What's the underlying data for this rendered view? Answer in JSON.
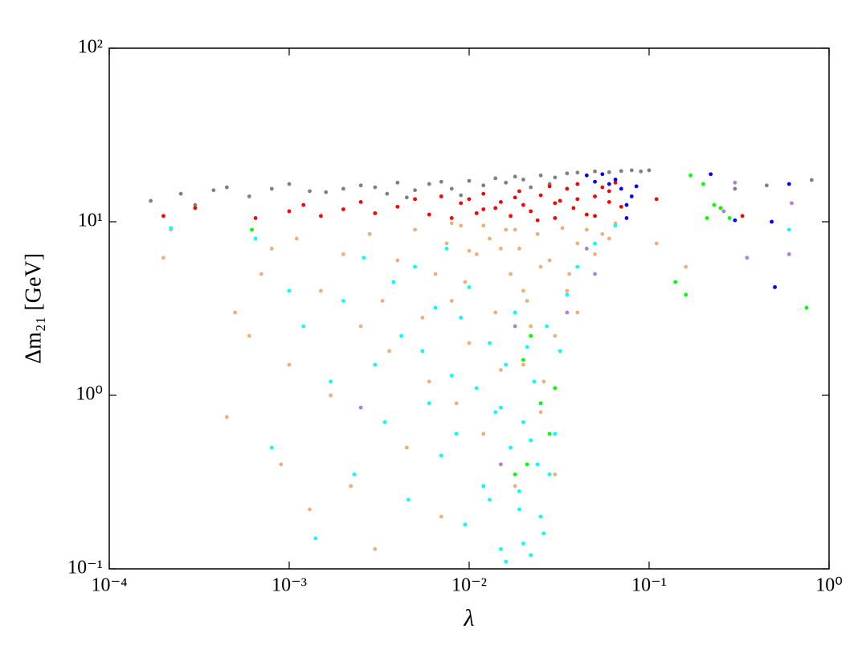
{
  "chart_data": {
    "type": "scatter",
    "xlabel": "λ",
    "ylabel": "Δm₂₁ [GeV]",
    "xscale": "log",
    "yscale": "log",
    "xlim": [
      0.0001,
      1
    ],
    "ylim": [
      0.1,
      100
    ],
    "xticks": [
      {
        "value": 0.0001,
        "label": "10⁻⁴"
      },
      {
        "value": 0.001,
        "label": "10⁻³"
      },
      {
        "value": 0.01,
        "label": "10⁻²"
      },
      {
        "value": 0.1,
        "label": "10⁻¹"
      },
      {
        "value": 1,
        "label": "10⁰"
      }
    ],
    "yticks": [
      {
        "value": 0.1,
        "label": "10⁻¹"
      },
      {
        "value": 1,
        "label": "10⁰"
      },
      {
        "value": 10,
        "label": "10¹"
      },
      {
        "value": 100,
        "label": "10²"
      }
    ],
    "series": [
      {
        "color": "#808080",
        "x": [
          0.00017,
          0.00025,
          0.0003,
          0.00038,
          0.00045,
          0.0006,
          0.0008,
          0.001,
          0.0013,
          0.0016,
          0.002,
          0.0025,
          0.003,
          0.0035,
          0.004,
          0.005,
          0.006,
          0.007,
          0.008,
          0.01,
          0.012,
          0.014,
          0.016,
          0.018,
          0.02,
          0.025,
          0.03,
          0.035,
          0.04,
          0.05,
          0.06,
          0.07,
          0.08,
          0.09,
          0.1,
          0.3,
          0.45,
          0.8,
          0.0045,
          0.009,
          0.022,
          0.028
        ],
        "y": [
          13.2,
          14.5,
          12.5,
          15.2,
          15.8,
          14,
          15.5,
          16.5,
          15,
          14.8,
          15.5,
          16.2,
          15.8,
          14.5,
          16.8,
          15.2,
          16.5,
          17,
          15.5,
          17.2,
          16.2,
          17.8,
          16.8,
          18.2,
          17.5,
          18.5,
          18,
          19,
          19.2,
          19.5,
          19.3,
          19.6,
          19.8,
          19.5,
          19.8,
          15.5,
          16.2,
          17.4,
          13.8,
          14.2,
          15.8,
          16.5
        ]
      },
      {
        "color": "#ff0000",
        "x": [
          0.0002,
          0.0003,
          0.00065,
          0.001,
          0.0012,
          0.0015,
          0.002,
          0.0025,
          0.003,
          0.004,
          0.005,
          0.006,
          0.007,
          0.008,
          0.009,
          0.01,
          0.011,
          0.012,
          0.014,
          0.015,
          0.017,
          0.019,
          0.02,
          0.022,
          0.025,
          0.028,
          0.03,
          0.032,
          0.035,
          0.038,
          0.04,
          0.045,
          0.05,
          0.055,
          0.06,
          0.065,
          0.07,
          0.012,
          0.018,
          0.024,
          0.03,
          0.04,
          0.05,
          0.06,
          0.11,
          0.25,
          0.33
        ],
        "y": [
          10.8,
          12,
          10.5,
          11.5,
          12.5,
          10.8,
          11.8,
          13,
          11.2,
          12.2,
          13.5,
          11,
          14,
          10.5,
          12.8,
          13.5,
          11.2,
          14.5,
          12,
          13,
          10.8,
          15,
          12.5,
          11.5,
          14.2,
          16,
          10.5,
          13.2,
          15.5,
          12,
          16.5,
          11,
          14,
          15.8,
          13,
          16.8,
          12.2,
          11.8,
          13.8,
          10.2,
          12.8,
          13.5,
          10.8,
          15,
          13.5,
          12,
          10.8
        ]
      },
      {
        "color": "#0000ff",
        "x": [
          0.045,
          0.05,
          0.055,
          0.06,
          0.065,
          0.07,
          0.075,
          0.08,
          0.085,
          0.22,
          0.3,
          0.48,
          0.6,
          0.5,
          0.075
        ],
        "y": [
          18.5,
          17,
          18.8,
          16.5,
          17.5,
          15.5,
          12.5,
          14,
          16,
          18.8,
          10.2,
          10,
          16.5,
          4.2,
          10.5
        ]
      },
      {
        "color": "#eeb07a",
        "x": [
          0.0002,
          0.00022,
          0.00045,
          0.0005,
          0.0006,
          0.0007,
          0.0008,
          0.0009,
          0.001,
          0.0011,
          0.0013,
          0.0015,
          0.0017,
          0.002,
          0.0022,
          0.0025,
          0.0028,
          0.003,
          0.0033,
          0.0036,
          0.004,
          0.0045,
          0.005,
          0.0055,
          0.006,
          0.0065,
          0.007,
          0.0075,
          0.008,
          0.0085,
          0.009,
          0.0095,
          0.01,
          0.011,
          0.012,
          0.013,
          0.014,
          0.015,
          0.016,
          0.017,
          0.018,
          0.019,
          0.02,
          0.022,
          0.024,
          0.026,
          0.028,
          0.03,
          0.033,
          0.036,
          0.04,
          0.045,
          0.05,
          0.055,
          0.06,
          0.065,
          0.012,
          0.015,
          0.018,
          0.021,
          0.025,
          0.03,
          0.035,
          0.04,
          0.02,
          0.025,
          0.01,
          0.008,
          0.11,
          0.16
        ],
        "y": [
          6.2,
          9,
          0.75,
          3,
          2.2,
          5,
          7,
          0.4,
          1.5,
          8,
          0.22,
          4,
          1,
          6.5,
          0.3,
          2.5,
          8.5,
          0.13,
          3.5,
          1.8,
          6,
          0.5,
          9,
          2.8,
          1.2,
          5,
          0.2,
          7.5,
          3.5,
          0.9,
          9.5,
          4.5,
          2,
          6.5,
          0.6,
          8,
          3,
          1.4,
          9,
          5,
          0.3,
          7,
          4,
          2.5,
          8.5,
          1.2,
          6,
          0.35,
          9.2,
          5,
          7.5,
          9,
          6.5,
          8.5,
          8,
          9.8,
          9.5,
          7,
          9,
          3.5,
          5.5,
          2.2,
          4,
          3,
          1.5,
          0.8,
          6.8,
          9.8,
          7.5,
          5.5
        ]
      },
      {
        "color": "#00ffff",
        "x": [
          0.00022,
          0.00065,
          0.0008,
          0.001,
          0.0012,
          0.0014,
          0.0017,
          0.002,
          0.0023,
          0.0026,
          0.003,
          0.0034,
          0.0038,
          0.0042,
          0.0046,
          0.005,
          0.0055,
          0.006,
          0.0065,
          0.007,
          0.0075,
          0.008,
          0.0085,
          0.009,
          0.0095,
          0.01,
          0.011,
          0.012,
          0.013,
          0.014,
          0.015,
          0.016,
          0.017,
          0.018,
          0.019,
          0.02,
          0.021,
          0.022,
          0.023,
          0.024,
          0.025,
          0.026,
          0.027,
          0.028,
          0.03,
          0.032,
          0.035,
          0.04,
          0.05,
          0.065,
          0.6,
          0.013,
          0.016,
          0.019,
          0.022,
          0.025,
          0.015,
          0.02
        ],
        "y": [
          9.2,
          8,
          0.5,
          4,
          2.5,
          0.15,
          1.2,
          3.5,
          0.35,
          6.2,
          1.5,
          0.7,
          4.5,
          2.2,
          0.25,
          5.5,
          1.8,
          0.9,
          3.2,
          0.45,
          7,
          1.3,
          0.6,
          2.8,
          0.18,
          4.2,
          1.1,
          0.3,
          2,
          0.8,
          0.13,
          1.5,
          0.5,
          3,
          0.22,
          0.7,
          1.9,
          0.12,
          1.2,
          0.4,
          0.9,
          0.16,
          2.5,
          0.35,
          0.6,
          1.8,
          3.8,
          5.5,
          7.5,
          9.5,
          9,
          0.25,
          0.11,
          0.28,
          0.55,
          0.2,
          0.85,
          0.14
        ]
      },
      {
        "color": "#00ff00",
        "x": [
          0.00062,
          0.17,
          0.21,
          0.23,
          0.25,
          0.28,
          0.2,
          0.14,
          0.16,
          0.02,
          0.025,
          0.03,
          0.018,
          0.022,
          0.028,
          0.75,
          0.021
        ],
        "y": [
          9,
          18.5,
          10.5,
          12.5,
          12,
          10.5,
          16.5,
          4.5,
          3.8,
          1.6,
          0.9,
          1.1,
          0.35,
          2.2,
          0.6,
          3.2,
          0.4
        ]
      },
      {
        "color": "#b07fd0",
        "x": [
          0.3,
          0.35,
          0.6,
          0.62,
          0.26,
          0.05,
          0.045,
          0.035,
          0.015,
          0.0025,
          0.018
        ],
        "y": [
          16.8,
          6.2,
          6.5,
          12.8,
          11.5,
          5,
          7,
          3,
          0.4,
          0.85,
          2.5
        ]
      }
    ]
  }
}
